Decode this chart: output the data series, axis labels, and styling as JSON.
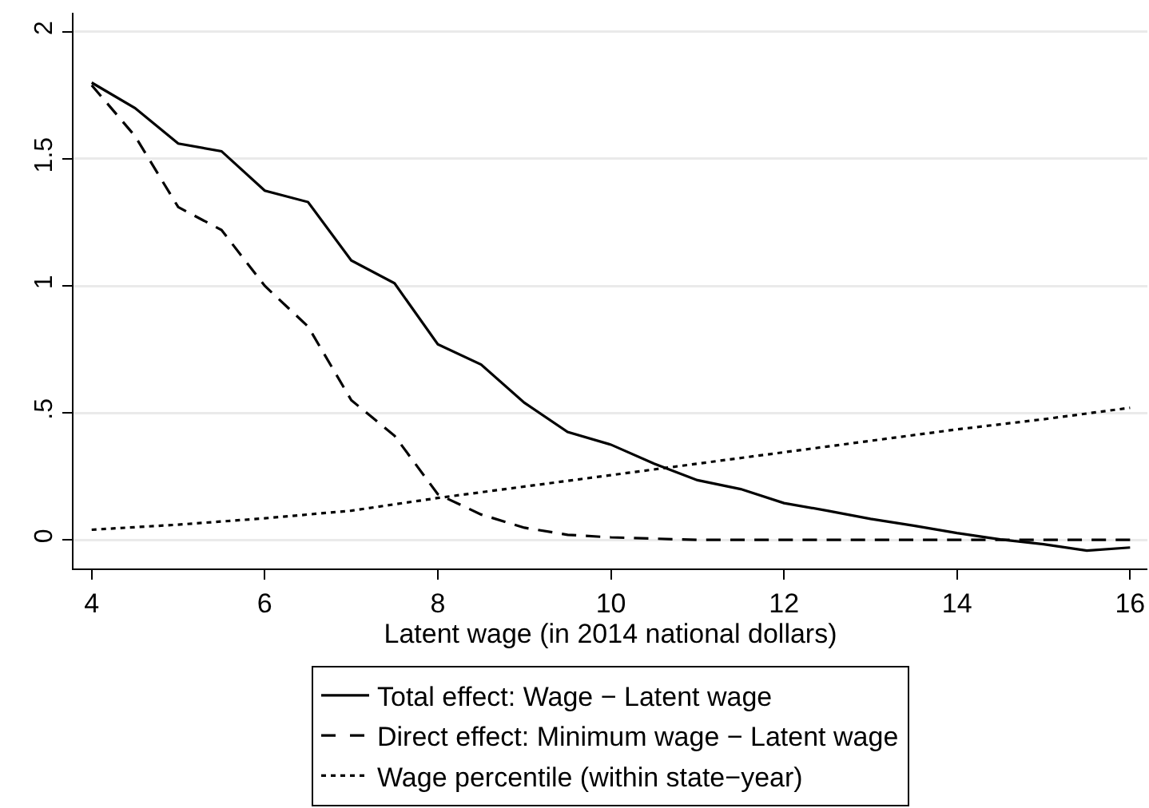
{
  "chart_data": {
    "type": "line",
    "xlabel": "Latent wage (in 2014 national dollars)",
    "x": [
      4,
      4.5,
      5,
      5.5,
      6,
      6.5,
      7,
      7.5,
      8,
      8.5,
      9,
      9.5,
      10,
      10.5,
      11,
      11.5,
      12,
      12.5,
      13,
      13.5,
      14,
      14.5,
      15,
      15.5,
      16
    ],
    "series": [
      {
        "name": "Total effect: Wage − Latent wage",
        "color": "#000000",
        "line_style": "solid",
        "values": [
          1.8,
          1.7,
          1.56,
          1.53,
          1.375,
          1.33,
          1.1,
          1.01,
          0.77,
          0.69,
          0.54,
          0.425,
          0.375,
          0.3,
          0.235,
          0.2,
          0.145,
          0.115,
          0.083,
          0.056,
          0.027,
          0.002,
          -0.017,
          -0.042,
          -0.03
        ]
      },
      {
        "name": "Direct effect: Minimum wage − Latent wage",
        "color": "#000000",
        "line_style": "dashed",
        "values": [
          1.79,
          1.59,
          1.31,
          1.22,
          1.0,
          0.84,
          0.55,
          0.41,
          0.18,
          0.1,
          0.048,
          0.02,
          0.01,
          0.005,
          0,
          0,
          0,
          0,
          0,
          0,
          0,
          0,
          0,
          0,
          0
        ]
      },
      {
        "name": "Wage percentile (within state−year)",
        "color": "#000000",
        "line_style": "dotted",
        "x": [
          4,
          5,
          6,
          7,
          8,
          9,
          10,
          11,
          12,
          13,
          14,
          15,
          16
        ],
        "values": [
          0.04,
          0.06,
          0.085,
          0.115,
          0.165,
          0.21,
          0.255,
          0.3,
          0.345,
          0.39,
          0.435,
          0.475,
          0.52
        ]
      }
    ],
    "xlim": [
      3.79,
      16.2
    ],
    "xticks": [
      4,
      6,
      8,
      10,
      12,
      14,
      16
    ],
    "ylim": [
      -0.1125,
      2.075
    ],
    "yticks": [
      {
        "value": 0,
        "label": "0"
      },
      {
        "value": 0.5,
        "label": ".5"
      },
      {
        "value": 1,
        "label": "1"
      },
      {
        "value": 1.5,
        "label": "1.5"
      },
      {
        "value": 2,
        "label": "2"
      }
    ],
    "grid": "y",
    "legend": "bottom",
    "marker": "none"
  }
}
